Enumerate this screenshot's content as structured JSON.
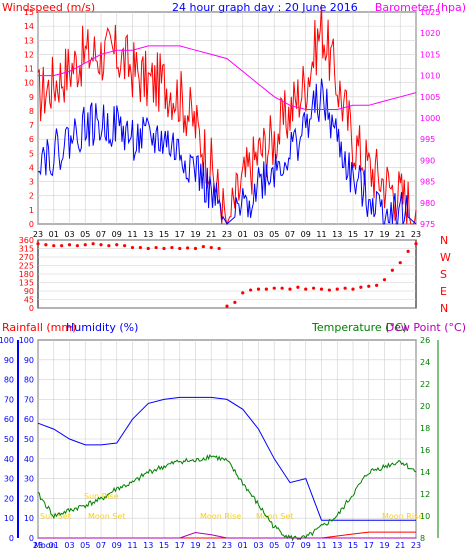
{
  "header": {
    "title": "24 hour graph day : 20 June 2016",
    "left_label": "Windspeed (m/s)",
    "right_label": "Barometer (hpa)"
  },
  "colors": {
    "frame": "#000000",
    "grid": "#d0d0d0",
    "panel_bg": "#ffffff",
    "wind_gust": "#ff0000",
    "wind_avg": "#0000ff",
    "barometer": "#ff00ff",
    "direction": "#ff0000",
    "humidity": "#0000ff",
    "temperature": "#008000",
    "rainfall": "#ff0000",
    "dewpoint": "#b000b0",
    "sun": "#ffff00",
    "moon": "#ffff00"
  },
  "bottom_header": {
    "rainfall_label": "Rainfall (mm)",
    "humidity_label": "Humidity (%)",
    "temperature_label": "Temperature (°C)",
    "dewpoint_label": "Dew Point (°C)"
  },
  "time_ticks": [
    "23",
    "01",
    "03",
    "05",
    "07",
    "09",
    "11",
    "13",
    "15",
    "17",
    "19",
    "21",
    "23",
    "01",
    "03",
    "05",
    "07",
    "09",
    "11",
    "13",
    "15",
    "17",
    "19",
    "21",
    "23"
  ],
  "bottom_time_ticks": [
    "Moon",
    "23",
    "01",
    "03",
    "05",
    "07",
    "09",
    "11",
    "13",
    "15",
    "17",
    "19",
    "21",
    "23",
    "01",
    "03",
    "05",
    "07",
    "09",
    "11",
    "13",
    "15",
    "17",
    "19",
    "21",
    "23"
  ],
  "astro_labels": {
    "sun_rise": "Sun Rise",
    "sun_set": "Sun Set",
    "moon_rise": "Moon Rise",
    "moon_set": "Moon Set"
  },
  "chart_data": [
    {
      "type": "line",
      "title": "24 hour graph day : 20 June 2016",
      "xlabel": "",
      "ylabel": "Windspeed (m/s)",
      "ylim": [
        0,
        15
      ],
      "y2label": "Barometer (hpa)",
      "y2lim": [
        975,
        1025
      ],
      "x_hours": [
        0,
        2,
        4,
        6,
        8,
        10,
        12,
        14,
        16,
        18,
        20,
        22,
        24,
        26,
        28,
        30,
        32,
        34,
        36,
        38,
        40,
        42,
        44,
        46,
        48
      ],
      "yticks": [
        0,
        1,
        2,
        3,
        4,
        5,
        6,
        7,
        8,
        9,
        10,
        11,
        12,
        13,
        14,
        15
      ],
      "y2ticks": [
        975,
        980,
        985,
        990,
        995,
        1000,
        1005,
        1010,
        1015,
        1020,
        1025
      ],
      "series": [
        {
          "name": "Windspeed (m/s)",
          "axis": "left",
          "values": [
            9,
            10,
            11,
            12,
            12,
            12,
            11,
            10,
            10,
            9,
            7,
            4,
            0,
            3,
            5,
            6,
            8,
            10,
            14,
            10,
            6,
            4,
            3,
            2,
            1
          ]
        },
        {
          "name": "",
          "axis": "left",
          "values": [
            5,
            5,
            6,
            7,
            7,
            7,
            6,
            6,
            6,
            5,
            4,
            2,
            0,
            1,
            3,
            4,
            5,
            7,
            9,
            6,
            3,
            2,
            1,
            1,
            0
          ]
        },
        {
          "name": "Barometer (hpa)",
          "axis": "right",
          "values": [
            1010,
            1010,
            1011,
            1013,
            1015,
            1016,
            1016,
            1017,
            1017,
            1017,
            1016,
            1015,
            1014,
            1011,
            1008,
            1005,
            1003,
            1002,
            1002,
            1002,
            1003,
            1003,
            1004,
            1005,
            1006
          ]
        }
      ]
    },
    {
      "type": "scatter",
      "title": "",
      "ylabel": "",
      "ylim": [
        0,
        360
      ],
      "yticks": [
        0,
        45,
        90,
        135,
        180,
        225,
        270,
        315,
        360
      ],
      "compass_labels": [
        "N",
        "W",
        "S",
        "E",
        "N"
      ],
      "series": [
        {
          "name": "",
          "x_hours": [
            0,
            1,
            2,
            3,
            4,
            5,
            6,
            7,
            8,
            9,
            10,
            11,
            12,
            13,
            14,
            15,
            16,
            17,
            18,
            19,
            20,
            21,
            22,
            23,
            24,
            25,
            26,
            27,
            28,
            29,
            30,
            31,
            32,
            33,
            34,
            35,
            36,
            37,
            38,
            39,
            40,
            41,
            42,
            43,
            44,
            45,
            46,
            47,
            48
          ],
          "values": [
            340,
            335,
            330,
            330,
            335,
            330,
            335,
            340,
            335,
            330,
            335,
            330,
            320,
            320,
            315,
            320,
            315,
            320,
            315,
            318,
            315,
            325,
            320,
            315,
            10,
            30,
            80,
            95,
            100,
            100,
            105,
            105,
            100,
            110,
            100,
            105,
            100,
            95,
            100,
            105,
            100,
            110,
            115,
            120,
            150,
            200,
            240,
            300,
            340
          ]
        }
      ]
    },
    {
      "type": "line",
      "title": "",
      "ylabel": "Rainfall (mm) / Humidity (%)",
      "ylim": [
        0,
        100
      ],
      "yticks": [
        0,
        10,
        20,
        30,
        40,
        50,
        60,
        70,
        80,
        90,
        100
      ],
      "y2label": "Temperature (°C) / Dew Point (°C)",
      "y2lim": [
        8,
        26
      ],
      "y2ticks": [
        8,
        10,
        12,
        14,
        16,
        18,
        20,
        22,
        24,
        26
      ],
      "x_hours": [
        0,
        2,
        4,
        6,
        8,
        10,
        12,
        14,
        16,
        18,
        20,
        22,
        24,
        26,
        28,
        30,
        32,
        34,
        36,
        38,
        40,
        42,
        44,
        46,
        48
      ],
      "series": [
        {
          "name": "Humidity (%)",
          "axis": "left",
          "values": [
            58,
            55,
            50,
            47,
            47,
            48,
            60,
            68,
            70,
            71,
            71,
            71,
            70,
            65,
            55,
            40,
            28,
            30,
            9,
            9,
            9,
            9,
            9,
            9,
            9
          ]
        },
        {
          "name": "Temperature (°C)",
          "axis": "right",
          "values": [
            12,
            10,
            10.5,
            11,
            11.5,
            12.5,
            13,
            14,
            14.5,
            15,
            15,
            15.5,
            15,
            13,
            11,
            9,
            8,
            8,
            9,
            10,
            12,
            14,
            14.5,
            15,
            14
          ]
        },
        {
          "name": "Rainfall (mm)",
          "axis": "left",
          "values": [
            0,
            0,
            0,
            0,
            0,
            0,
            0,
            0,
            0,
            0,
            0,
            0,
            0,
            0,
            0,
            0,
            0,
            0,
            0,
            1,
            2,
            3,
            3,
            3,
            3
          ]
        },
        {
          "name": "Dew Point (°C)",
          "axis": "right",
          "values": [
            8,
            8,
            8,
            8,
            8,
            8,
            8,
            8,
            8,
            8,
            8.5,
            8.3,
            8,
            8,
            8,
            8,
            8,
            8,
            8,
            8,
            8,
            8,
            8,
            8,
            8
          ]
        }
      ]
    }
  ]
}
